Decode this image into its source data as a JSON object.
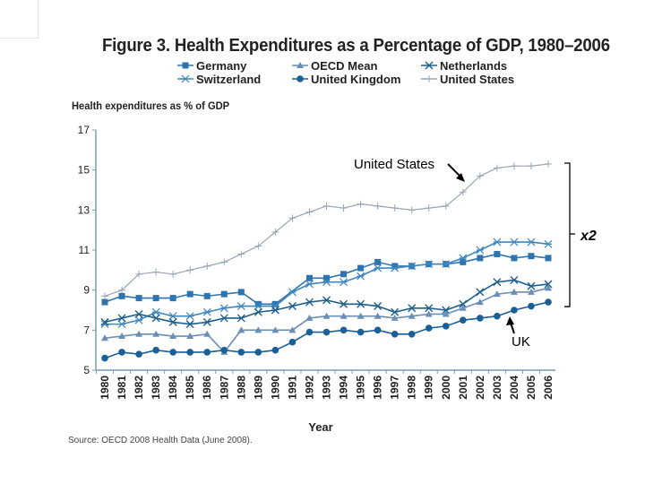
{
  "chart_data": {
    "type": "line",
    "title": "Figure 3. Health Expenditures as a Percentage of GDP, 1980–2006",
    "ylabel": "Health expenditures as % of GDP",
    "xlabel": "Year",
    "ylim": [
      5,
      17
    ],
    "yticks": [
      "5",
      "7",
      "9",
      "11",
      "13",
      "15",
      "17"
    ],
    "grid": false,
    "legend": "top-center",
    "source": "Source: OECD 2008 Health Data (June 2008).",
    "x": [
      "1980",
      "1981",
      "1982",
      "1983",
      "1984",
      "1985",
      "1986",
      "1987",
      "1988",
      "1989",
      "1990",
      "1991",
      "1992",
      "1993",
      "1994",
      "1995",
      "1996",
      "1997",
      "1998",
      "1999",
      "2000",
      "2001",
      "2002",
      "2003",
      "2004",
      "2005",
      "2006"
    ],
    "series": [
      {
        "name": "Germany",
        "marker": "square",
        "color": "#2e75b0",
        "values": [
          8.4,
          8.7,
          8.6,
          8.6,
          8.6,
          8.8,
          8.7,
          8.8,
          8.9,
          8.3,
          8.3,
          null,
          9.6,
          9.6,
          9.8,
          10.1,
          10.4,
          10.2,
          10.2,
          10.3,
          10.3,
          10.4,
          10.6,
          10.8,
          10.6,
          10.7,
          10.6
        ]
      },
      {
        "name": "OECD Mean",
        "marker": "triangle",
        "color": "#6a8fb5",
        "values": [
          6.6,
          6.7,
          6.8,
          6.8,
          6.7,
          6.7,
          6.8,
          5.9,
          7.0,
          7.0,
          7.0,
          7.0,
          7.6,
          7.7,
          7.7,
          7.7,
          7.7,
          7.6,
          7.7,
          7.8,
          7.8,
          8.1,
          8.4,
          8.8,
          8.9,
          8.9,
          9.1
        ]
      },
      {
        "name": "Netherlands",
        "marker": "x",
        "color": "#1f5f8b",
        "values": [
          7.4,
          7.6,
          7.8,
          7.6,
          7.4,
          7.3,
          7.4,
          7.6,
          7.6,
          7.9,
          8.0,
          8.2,
          8.4,
          8.5,
          8.3,
          8.3,
          8.2,
          7.9,
          8.1,
          8.1,
          8.0,
          8.3,
          8.9,
          9.4,
          9.5,
          9.2,
          9.3
        ]
      },
      {
        "name": "Switzerland",
        "marker": "asterisk",
        "color": "#3f86bd",
        "values": [
          7.3,
          7.3,
          7.5,
          7.9,
          7.7,
          7.7,
          7.9,
          8.1,
          8.2,
          8.2,
          8.2,
          8.9,
          9.3,
          9.4,
          9.4,
          9.7,
          10.1,
          10.1,
          10.2,
          10.3,
          10.3,
          10.6,
          11.0,
          11.4,
          11.4,
          11.4,
          11.3
        ]
      },
      {
        "name": "United Kingdom",
        "marker": "circle",
        "color": "#1a5f95",
        "values": [
          5.6,
          5.9,
          5.8,
          6.0,
          5.9,
          5.9,
          5.9,
          6.0,
          5.9,
          5.9,
          6.0,
          6.4,
          6.9,
          6.9,
          7.0,
          6.9,
          7.0,
          6.8,
          6.8,
          7.1,
          7.2,
          7.5,
          7.6,
          7.7,
          8.0,
          8.2,
          8.4
        ]
      },
      {
        "name": "United States",
        "marker": "plus",
        "color": "#9aa5b1",
        "values": [
          8.7,
          9.0,
          9.8,
          9.9,
          9.8,
          10.0,
          10.2,
          10.4,
          10.8,
          11.2,
          11.9,
          12.6,
          12.9,
          13.2,
          13.1,
          13.3,
          13.2,
          13.1,
          13.0,
          13.1,
          13.2,
          13.9,
          14.7,
          15.1,
          15.2,
          15.2,
          15.3
        ]
      }
    ],
    "annotations": [
      {
        "text": "United States",
        "points_to": {
          "series": "United States",
          "x": "2001"
        }
      },
      {
        "text": "UK",
        "points_to": {
          "series": "United Kingdom",
          "x": "2003"
        }
      },
      {
        "text": "x2",
        "type": "bracket",
        "range": [
          8.4,
          15.3
        ]
      }
    ]
  }
}
